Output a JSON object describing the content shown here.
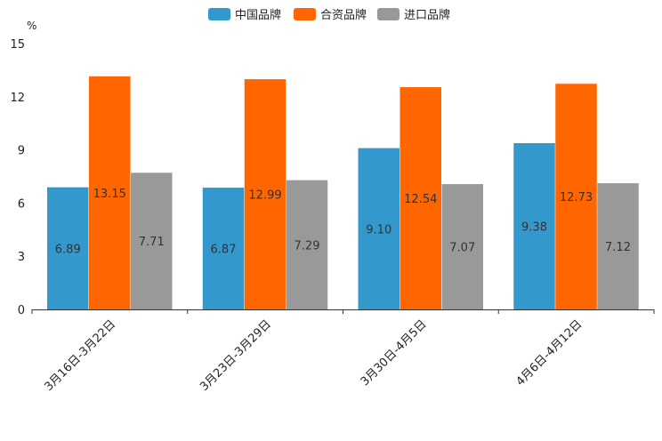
{
  "chart_data": {
    "type": "bar",
    "title": "",
    "xlabel": "",
    "ylabel": "",
    "unit_label": "%",
    "ylim": [
      0,
      15
    ],
    "yticks": [
      0,
      3,
      6,
      9,
      12,
      15
    ],
    "legend_position": "top-center",
    "grid": false,
    "categories": [
      "3月16日-3月22日",
      "3月23日-3月29日",
      "3月30日-4月5日",
      "4月6日-4月12日"
    ],
    "series": [
      {
        "name": "中国品牌",
        "color": "#3399CC",
        "values": [
          6.89,
          6.87,
          9.1,
          9.38
        ],
        "labels": [
          "6.89",
          "6.87",
          "9.10",
          "9.38"
        ]
      },
      {
        "name": "合资品牌",
        "color": "#FF6600",
        "values": [
          13.15,
          12.99,
          12.54,
          12.73
        ],
        "labels": [
          "13.15",
          "12.99",
          "12.54",
          "12.73"
        ]
      },
      {
        "name": "进口品牌",
        "color": "#999999",
        "values": [
          7.71,
          7.29,
          7.07,
          7.12
        ],
        "labels": [
          "7.71",
          "7.29",
          "7.07",
          "7.12"
        ]
      }
    ]
  }
}
